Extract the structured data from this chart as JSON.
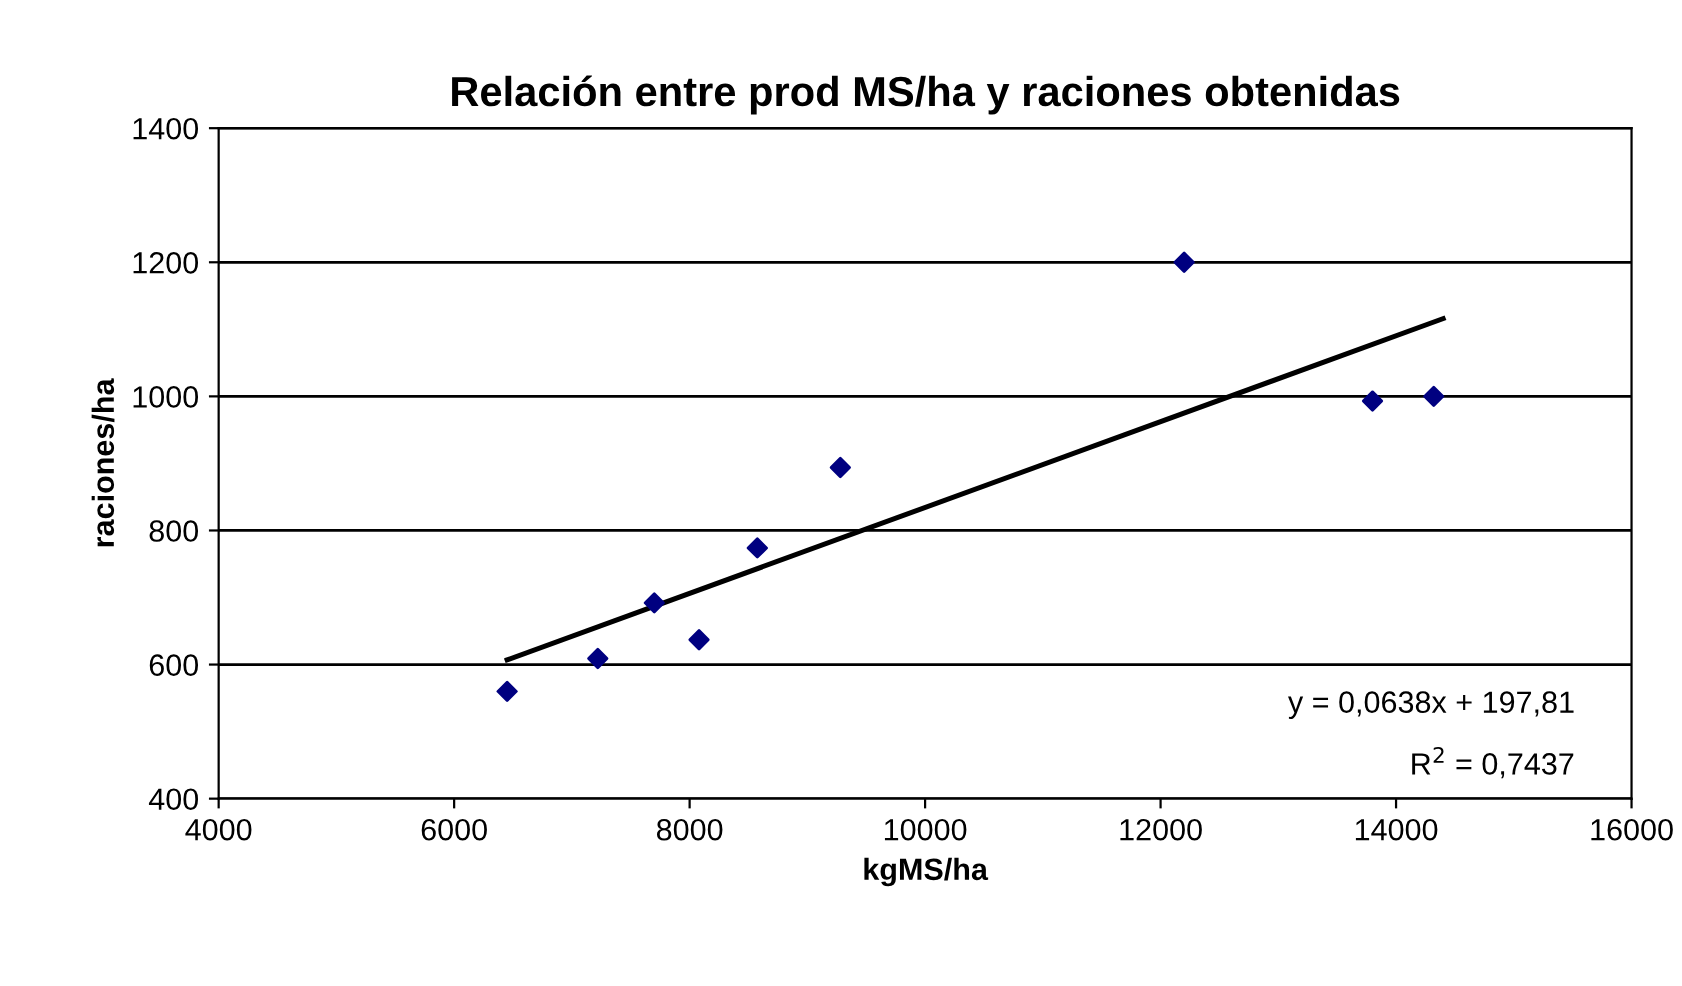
{
  "chart_data": {
    "type": "scatter",
    "title": "Relación entre prod MS/ha y raciones obtenidas",
    "xlabel": "kgMS/ha",
    "ylabel": "raciones/ha",
    "series": [
      {
        "color": "#000080",
        "marker": "diamond",
        "x": [
          6450,
          7220,
          7700,
          8080,
          8575,
          9280,
          12200,
          13800,
          14320
        ],
        "values": [
          560,
          609,
          692,
          637,
          774,
          894,
          1200,
          993,
          1000
        ]
      },
      {
        "type": "line",
        "color": "#000000",
        "line_style": "solid",
        "x": [
          6450,
          14400
        ],
        "values": [
          607,
          1116
        ]
      }
    ],
    "xlim": [
      4000,
      16000
    ],
    "xticks": [
      4000,
      6000,
      8000,
      10000,
      12000,
      14000,
      16000
    ],
    "ylim": [
      400,
      1400
    ],
    "yticks": [
      400,
      600,
      800,
      1000,
      1200,
      1400
    ],
    "grid": "y",
    "legend": false,
    "annotations": [
      "y = 0,0638x + 197,81",
      "R$^{2}$ = 0,7437"
    ]
  }
}
